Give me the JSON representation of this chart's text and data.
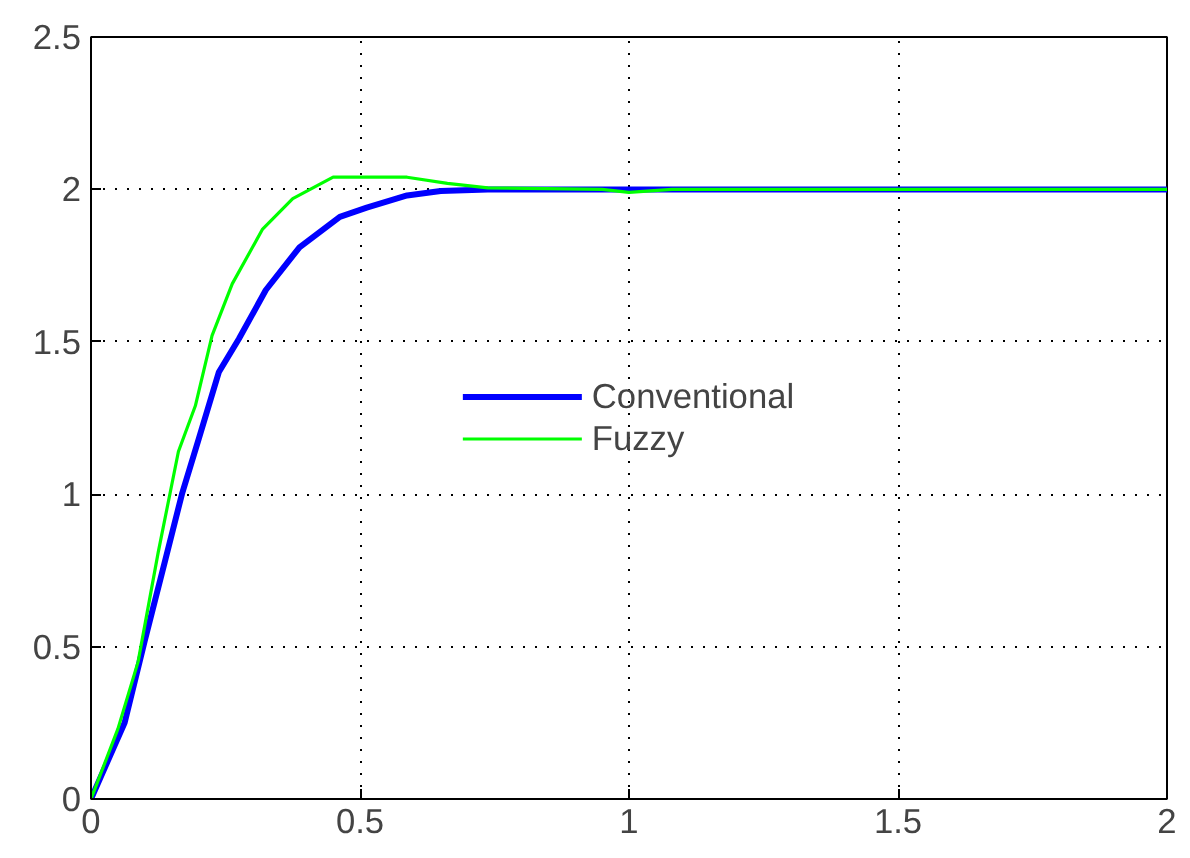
{
  "chart_data": {
    "type": "line",
    "xlim": [
      0,
      2
    ],
    "ylim": [
      0,
      2.5
    ],
    "xticks": [
      0,
      0.5,
      1,
      1.5,
      2
    ],
    "yticks": [
      0,
      0.5,
      1,
      1.5,
      2,
      2.5
    ],
    "grid": true,
    "legend": "center",
    "line_style": "solid",
    "marker": "none",
    "series": [
      {
        "name": "Conventional",
        "color": "#0000ff",
        "x": [
          0,
          0.0625,
          0.1,
          0.1375,
          0.169,
          0.2,
          0.2375,
          0.275,
          0.325,
          0.3875,
          0.4625,
          0.5125,
          0.5875,
          0.65,
          0.7375,
          1.0,
          1.5,
          2.0
        ],
        "values": [
          0,
          0.25,
          0.52,
          0.78,
          1.0,
          1.18,
          1.4,
          1.51,
          1.67,
          1.81,
          1.91,
          1.94,
          1.98,
          1.995,
          2.0,
          2.0,
          2.0,
          2.0
        ]
      },
      {
        "name": "Fuzzy",
        "color": "#00ff00",
        "x": [
          0,
          0.05,
          0.0875,
          0.125,
          0.1625,
          0.194,
          0.225,
          0.2625,
          0.319,
          0.375,
          0.45,
          0.5875,
          0.6625,
          0.7375,
          0.95,
          1.0,
          1.08,
          1.5,
          2.0
        ],
        "values": [
          0,
          0.23,
          0.45,
          0.81,
          1.14,
          1.29,
          1.52,
          1.69,
          1.87,
          1.97,
          2.04,
          2.04,
          2.02,
          2.005,
          2.0,
          1.99,
          2.0,
          2.0,
          2.0
        ]
      }
    ]
  }
}
